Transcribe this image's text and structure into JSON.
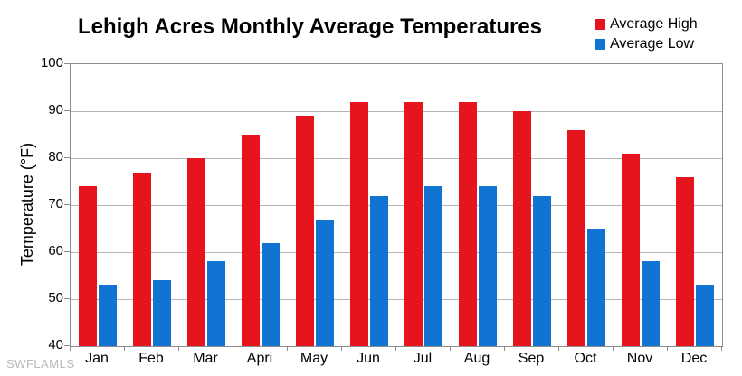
{
  "title": "Lehigh Acres Monthly Average Temperatures",
  "watermark": "SWFLAMLS",
  "y_axis": {
    "label": "Temperature (°F)",
    "ticks": [
      100,
      90,
      80,
      70,
      60,
      50,
      40
    ],
    "min": 40,
    "max": 100
  },
  "colors": {
    "average_high": "#e6151d",
    "average_low": "#1274d2",
    "gridline": "#b5b5b5",
    "plot_border": "#8c8c8c",
    "watermark": "#b9b9b9"
  },
  "chart_data": {
    "type": "bar",
    "title": "Lehigh Acres Monthly Average Temperatures",
    "categories": [
      "Jan",
      "Feb",
      "Mar",
      "Apri",
      "May",
      "Jun",
      "Jul",
      "Aug",
      "Sep",
      "Oct",
      "Nov",
      "Dec"
    ],
    "series": [
      {
        "name": "Average High",
        "color": "#e6151d",
        "values": [
          74,
          77,
          80,
          85,
          89,
          92,
          92,
          92,
          90,
          86,
          81,
          76
        ]
      },
      {
        "name": "Average Low",
        "color": "#1274d2",
        "values": [
          53,
          54,
          58,
          62,
          67,
          72,
          74,
          74,
          72,
          65,
          58,
          53
        ]
      }
    ],
    "xlabel": "",
    "ylabel": "Temperature (°F)",
    "ylim": [
      40,
      100
    ],
    "ytick_step": 10,
    "grid": true,
    "legend_position": "top-right"
  }
}
